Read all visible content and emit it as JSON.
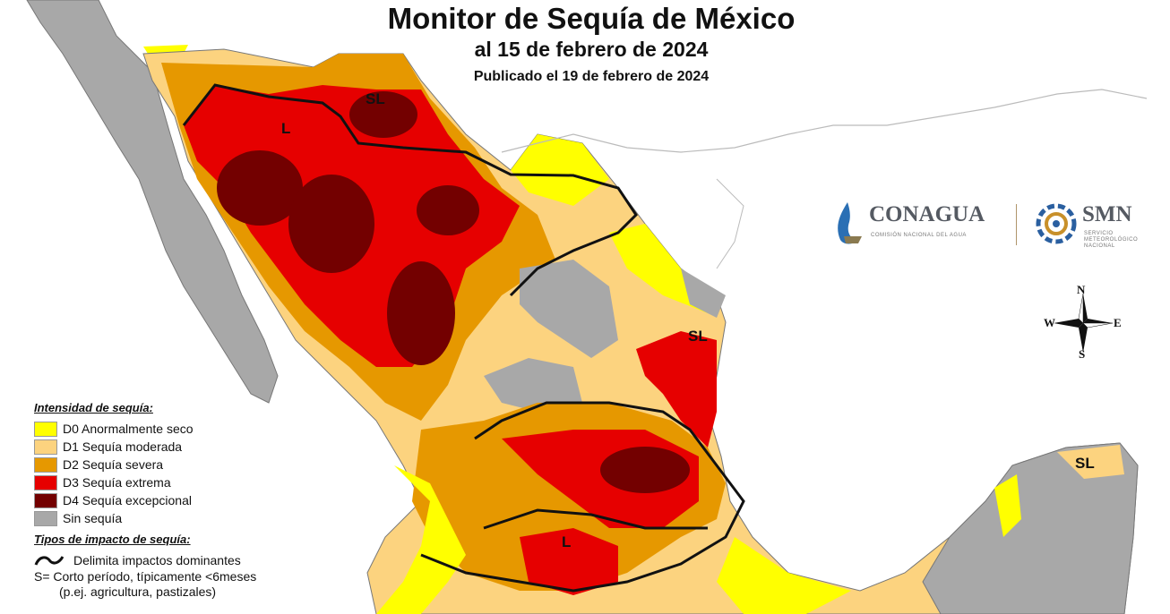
{
  "title": "Monitor de Sequía de México",
  "subtitle": "al 15 de febrero de 2024",
  "published": "Publicado el 19 de febrero de 2024",
  "legend": {
    "heading": "Intensidad de sequía:",
    "items": [
      {
        "code": "D0",
        "label": "D0 Anormalmente seco",
        "color": "#ffff00"
      },
      {
        "code": "D1",
        "label": "D1 Sequía moderada",
        "color": "#fcd37f"
      },
      {
        "code": "D2",
        "label": "D2 Sequía severa",
        "color": "#e69800"
      },
      {
        "code": "D3",
        "label": "D3 Sequía extrema",
        "color": "#e60000"
      },
      {
        "code": "D4",
        "label": "D4 Sequía excepcional",
        "color": "#730000"
      },
      {
        "code": "none",
        "label": "Sin sequía",
        "color": "#a8a8a8"
      }
    ]
  },
  "impact": {
    "heading": "Tipos de impacto de sequía:",
    "line_label": "Delimita impactos dominantes",
    "short_label": "S= Corto período, típicamente <6meses",
    "short_example": "(p.ej. agricultura, pastizales)"
  },
  "map_labels": {
    "sl1": "SL",
    "sl2": "SL",
    "sl3": "SL",
    "l1": "L",
    "l2": "L"
  },
  "logos": {
    "conagua": "CONAGUA",
    "conagua_sub": "COMISIÓN NACIONAL DEL AGUA",
    "smn": "SMN",
    "smn_sub1": "SERVICIO",
    "smn_sub2": "METEOROLÓGICO",
    "smn_sub3": "NACIONAL"
  },
  "compass": {
    "n": "N",
    "s": "S",
    "e": "E",
    "w": "W"
  }
}
